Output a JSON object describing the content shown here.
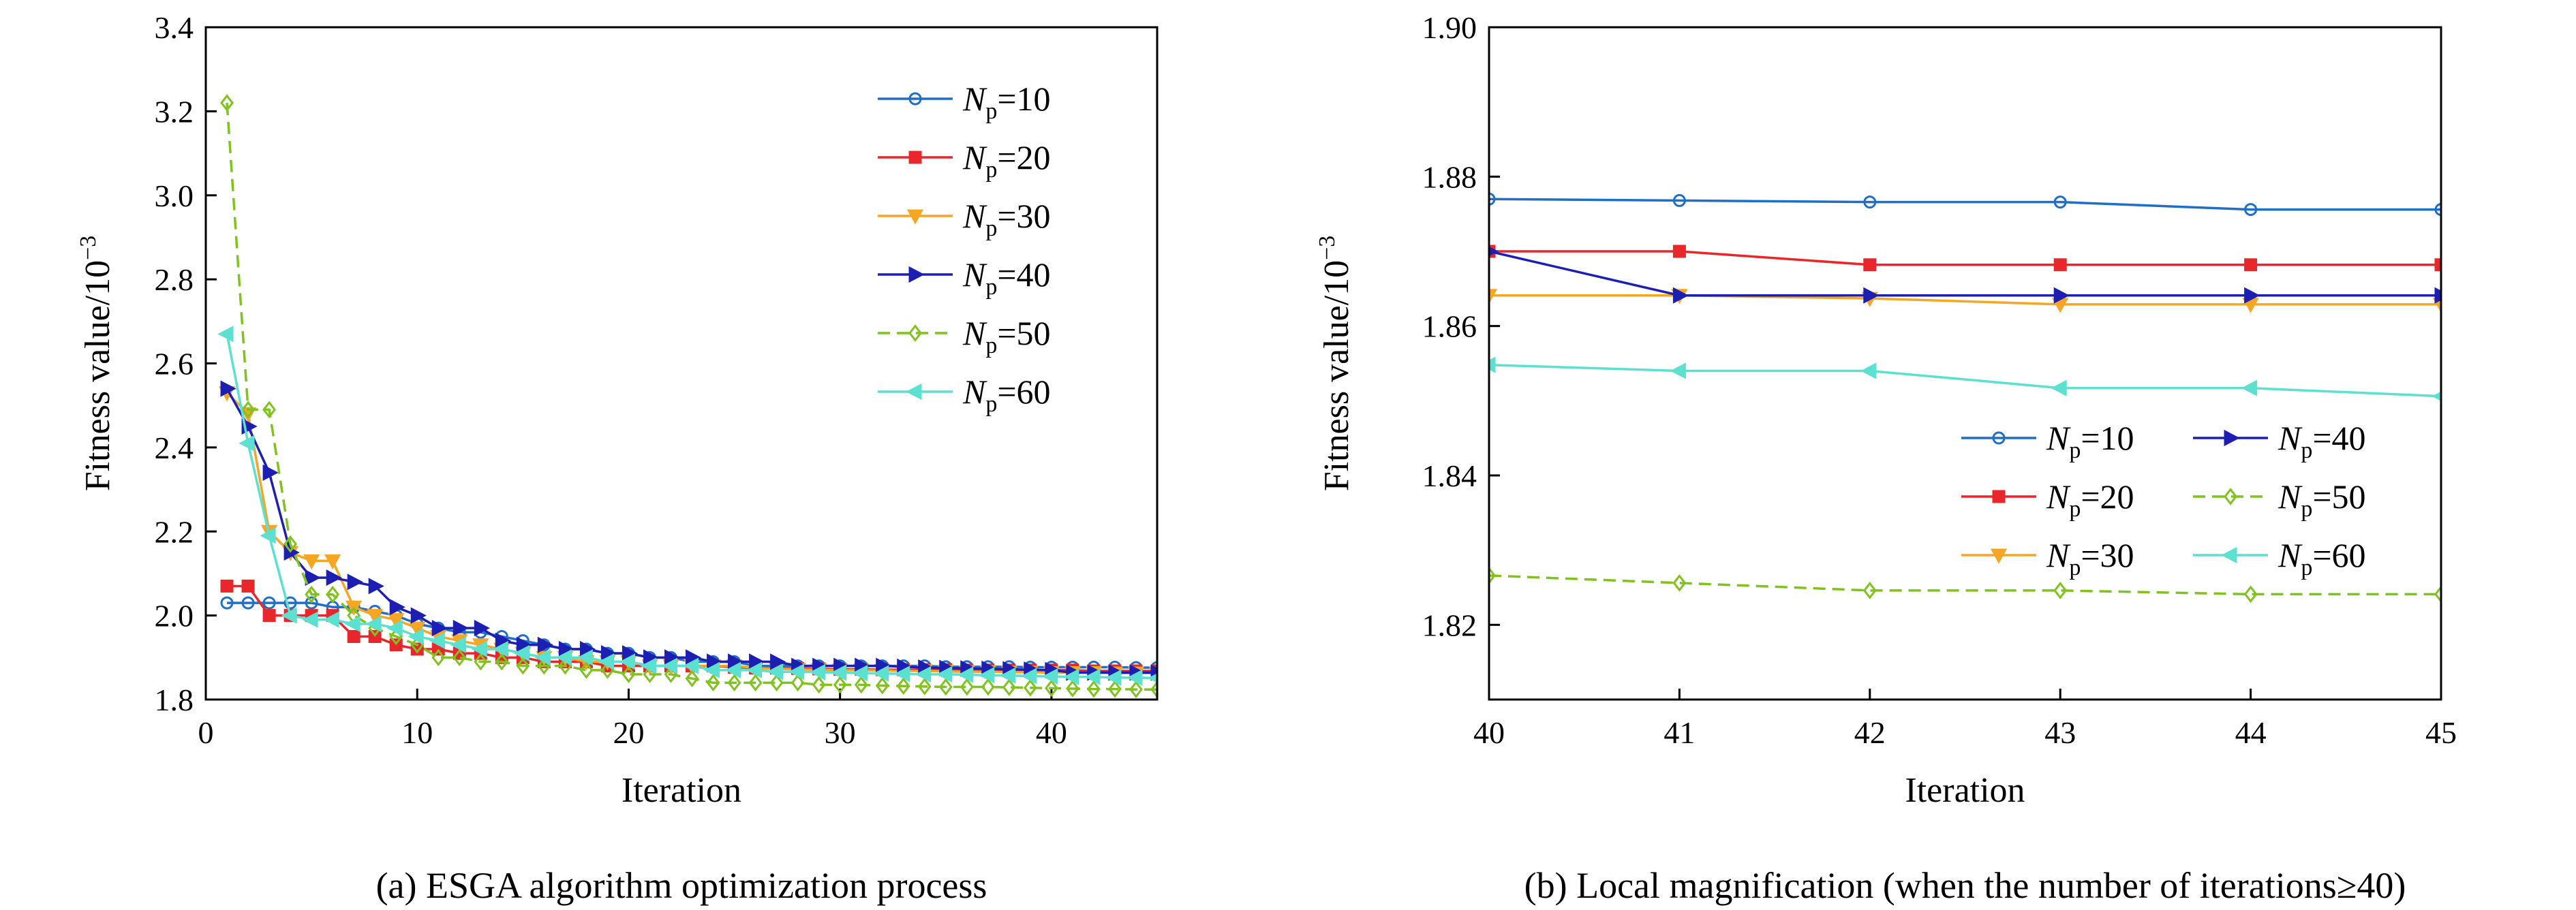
{
  "chart_data": [
    {
      "id": "a",
      "type": "line",
      "caption": "(a) ESGA algorithm optimization process",
      "xlabel": "Iteration",
      "ylabel": "Fitness value/10",
      "ylabel_exp": "−3",
      "xlim": [
        0,
        45
      ],
      "ylim": [
        1.8,
        3.4
      ],
      "xticks": [
        0,
        10,
        20,
        30,
        40
      ],
      "yticks": [
        1.8,
        2.0,
        2.2,
        2.4,
        2.6,
        2.8,
        3.0,
        3.2,
        3.4
      ],
      "ytick_labels": [
        "1.8",
        "2.0",
        "2.2",
        "2.4",
        "2.6",
        "2.8",
        "3.0",
        "3.2",
        "3.4"
      ],
      "grid": false,
      "legend": {
        "placement": "top-right",
        "columns": 1
      },
      "x": [
        1,
        2,
        3,
        4,
        5,
        6,
        7,
        8,
        9,
        10,
        11,
        12,
        13,
        14,
        15,
        16,
        17,
        18,
        19,
        20,
        21,
        22,
        23,
        24,
        25,
        26,
        27,
        28,
        29,
        30,
        31,
        32,
        33,
        34,
        35,
        36,
        37,
        38,
        39,
        40,
        41,
        42,
        43,
        44,
        45
      ],
      "series": [
        {
          "name_main": "N",
          "name_sub": "p",
          "name_rest": "=10",
          "color": "#1f6fc9",
          "marker": "circle",
          "dash": false,
          "values": [
            2.03,
            2.03,
            2.03,
            2.03,
            2.03,
            2.02,
            2.02,
            2.01,
            2.0,
            1.98,
            1.97,
            1.96,
            1.96,
            1.95,
            1.94,
            1.93,
            1.92,
            1.92,
            1.91,
            1.91,
            1.9,
            1.9,
            1.89,
            1.89,
            1.89,
            1.88,
            1.88,
            1.88,
            1.88,
            1.88,
            1.88,
            1.88,
            1.88,
            1.88,
            1.878,
            1.878,
            1.878,
            1.878,
            1.877,
            1.877,
            1.877,
            1.877,
            1.877,
            1.876,
            1.876
          ]
        },
        {
          "name_main": "N",
          "name_sub": "p",
          "name_rest": "=20",
          "color": "#e8262b",
          "marker": "square",
          "dash": false,
          "values": [
            2.07,
            2.07,
            2.0,
            2.0,
            2.0,
            2.0,
            1.95,
            1.95,
            1.93,
            1.92,
            1.92,
            1.91,
            1.91,
            1.9,
            1.9,
            1.89,
            1.89,
            1.89,
            1.88,
            1.88,
            1.88,
            1.88,
            1.88,
            1.88,
            1.877,
            1.875,
            1.875,
            1.874,
            1.873,
            1.872,
            1.872,
            1.871,
            1.871,
            1.871,
            1.871,
            1.87,
            1.87,
            1.87,
            1.87,
            1.87,
            1.87,
            1.868,
            1.868,
            1.868,
            1.868
          ]
        },
        {
          "name_main": "N",
          "name_sub": "p",
          "name_rest": "=30",
          "color": "#f5a623",
          "marker": "triangle-down",
          "dash": false,
          "values": [
            2.53,
            2.48,
            2.2,
            2.15,
            2.13,
            2.13,
            2.02,
            2.0,
            1.99,
            1.97,
            1.95,
            1.94,
            1.93,
            1.92,
            1.91,
            1.9,
            1.9,
            1.89,
            1.89,
            1.89,
            1.88,
            1.88,
            1.88,
            1.88,
            1.88,
            1.875,
            1.873,
            1.872,
            1.871,
            1.87,
            1.87,
            1.869,
            1.868,
            1.868,
            1.867,
            1.866,
            1.866,
            1.865,
            1.865,
            1.864,
            1.864,
            1.864,
            1.863,
            1.863,
            1.863
          ]
        },
        {
          "name_main": "N",
          "name_sub": "p",
          "name_rest": "=40",
          "color": "#1d1fb3",
          "marker": "triangle-right",
          "dash": false,
          "values": [
            2.54,
            2.45,
            2.34,
            2.15,
            2.09,
            2.09,
            2.08,
            2.07,
            2.02,
            2.0,
            1.97,
            1.97,
            1.97,
            1.94,
            1.93,
            1.93,
            1.92,
            1.92,
            1.91,
            1.91,
            1.9,
            1.9,
            1.9,
            1.89,
            1.89,
            1.89,
            1.89,
            1.88,
            1.88,
            1.88,
            1.88,
            1.88,
            1.878,
            1.876,
            1.875,
            1.874,
            1.873,
            1.872,
            1.871,
            1.87,
            1.864,
            1.864,
            1.864,
            1.864,
            1.864
          ]
        },
        {
          "name_main": "N",
          "name_sub": "p",
          "name_rest": "=50",
          "color": "#7fc31c",
          "marker": "diamond",
          "dash": true,
          "values": [
            3.22,
            2.49,
            2.49,
            2.17,
            2.05,
            2.05,
            2.0,
            1.97,
            1.95,
            1.93,
            1.9,
            1.9,
            1.89,
            1.89,
            1.88,
            1.88,
            1.88,
            1.87,
            1.87,
            1.86,
            1.86,
            1.86,
            1.85,
            1.84,
            1.84,
            1.84,
            1.84,
            1.84,
            1.835,
            1.835,
            1.835,
            1.833,
            1.832,
            1.831,
            1.83,
            1.83,
            1.83,
            1.829,
            1.828,
            1.827,
            1.826,
            1.825,
            1.825,
            1.824,
            1.824
          ]
        },
        {
          "name_main": "N",
          "name_sub": "p",
          "name_rest": "=60",
          "color": "#5ce0d0",
          "marker": "triangle-left",
          "dash": false,
          "values": [
            2.67,
            2.41,
            2.19,
            2.0,
            1.99,
            1.99,
            1.98,
            1.98,
            1.97,
            1.95,
            1.94,
            1.93,
            1.92,
            1.92,
            1.91,
            1.9,
            1.9,
            1.9,
            1.89,
            1.89,
            1.88,
            1.88,
            1.88,
            1.87,
            1.87,
            1.87,
            1.866,
            1.866,
            1.865,
            1.864,
            1.863,
            1.862,
            1.861,
            1.86,
            1.86,
            1.859,
            1.858,
            1.857,
            1.856,
            1.855,
            1.854,
            1.854,
            1.852,
            1.852,
            1.851
          ]
        }
      ]
    },
    {
      "id": "b",
      "type": "line",
      "caption": "(b) Local magnification (when the number of iterations≥40)",
      "xlabel": "Iteration",
      "ylabel": "Fitness value/10",
      "ylabel_exp": "−3",
      "xlim": [
        40,
        45
      ],
      "ylim": [
        1.81,
        1.9
      ],
      "xticks": [
        40,
        41,
        42,
        43,
        44,
        45
      ],
      "yticks": [
        1.82,
        1.84,
        1.86,
        1.88,
        1.9
      ],
      "ytick_labels": [
        "1.82",
        "1.84",
        "1.86",
        "1.88",
        "1.90"
      ],
      "grid": false,
      "legend": {
        "placement": "lower-right",
        "columns": 2
      },
      "x": [
        40,
        41,
        42,
        43,
        44,
        45
      ],
      "series": [
        {
          "name_main": "N",
          "name_sub": "p",
          "name_rest": "=10",
          "color": "#1f6fc9",
          "marker": "circle",
          "dash": false,
          "values": [
            1.877,
            1.8768,
            1.8766,
            1.8766,
            1.8756,
            1.8756
          ]
        },
        {
          "name_main": "N",
          "name_sub": "p",
          "name_rest": "=20",
          "color": "#e8262b",
          "marker": "square",
          "dash": false,
          "values": [
            1.87,
            1.87,
            1.8682,
            1.8682,
            1.8682,
            1.8682
          ]
        },
        {
          "name_main": "N",
          "name_sub": "p",
          "name_rest": "=30",
          "color": "#f5a623",
          "marker": "triangle-down",
          "dash": false,
          "values": [
            1.8641,
            1.8641,
            1.8637,
            1.8629,
            1.8629,
            1.8629
          ]
        },
        {
          "name_main": "N",
          "name_sub": "p",
          "name_rest": "=40",
          "color": "#1d1fb3",
          "marker": "triangle-right",
          "dash": false,
          "values": [
            1.87,
            1.8641,
            1.8641,
            1.8641,
            1.8641,
            1.8641
          ]
        },
        {
          "name_main": "N",
          "name_sub": "p",
          "name_rest": "=50",
          "color": "#7fc31c",
          "marker": "diamond",
          "dash": true,
          "values": [
            1.8266,
            1.8256,
            1.8246,
            1.8246,
            1.8241,
            1.8241
          ]
        },
        {
          "name_main": "N",
          "name_sub": "p",
          "name_rest": "=60",
          "color": "#5ce0d0",
          "marker": "triangle-left",
          "dash": false,
          "values": [
            1.8548,
            1.854,
            1.854,
            1.8517,
            1.8517,
            1.8506
          ]
        }
      ]
    }
  ]
}
